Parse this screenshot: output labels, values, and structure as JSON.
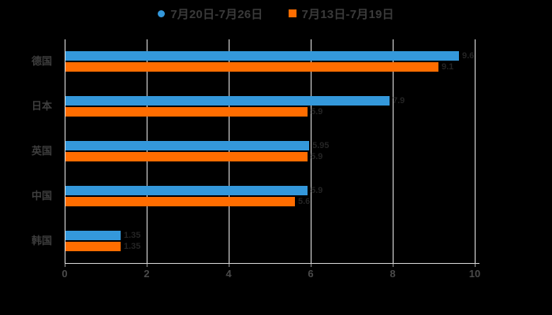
{
  "chart_data": {
    "type": "bar",
    "orientation": "horizontal",
    "title": "",
    "xlabel": "",
    "ylabel": "",
    "categories": [
      "德国",
      "日本",
      "英国",
      "中国",
      "韩国"
    ],
    "series": [
      {
        "name": "7月20日-7月26日",
        "color": "#3498db",
        "marker": "circle",
        "values": [
          9.6,
          7.9,
          5.95,
          5.9,
          1.35
        ]
      },
      {
        "name": "7月13日-7月19日",
        "color": "#ff6d00",
        "marker": "square",
        "values": [
          9.1,
          5.9,
          5.9,
          5.6,
          1.35
        ]
      }
    ],
    "x_ticks": [
      0,
      2,
      4,
      6,
      8,
      10
    ],
    "xlim": [
      0,
      10
    ],
    "grid": "on",
    "legend_position": "top",
    "background_color": "#000000",
    "gridline_color": "#ededed",
    "text_color": "#3e3e3e"
  }
}
